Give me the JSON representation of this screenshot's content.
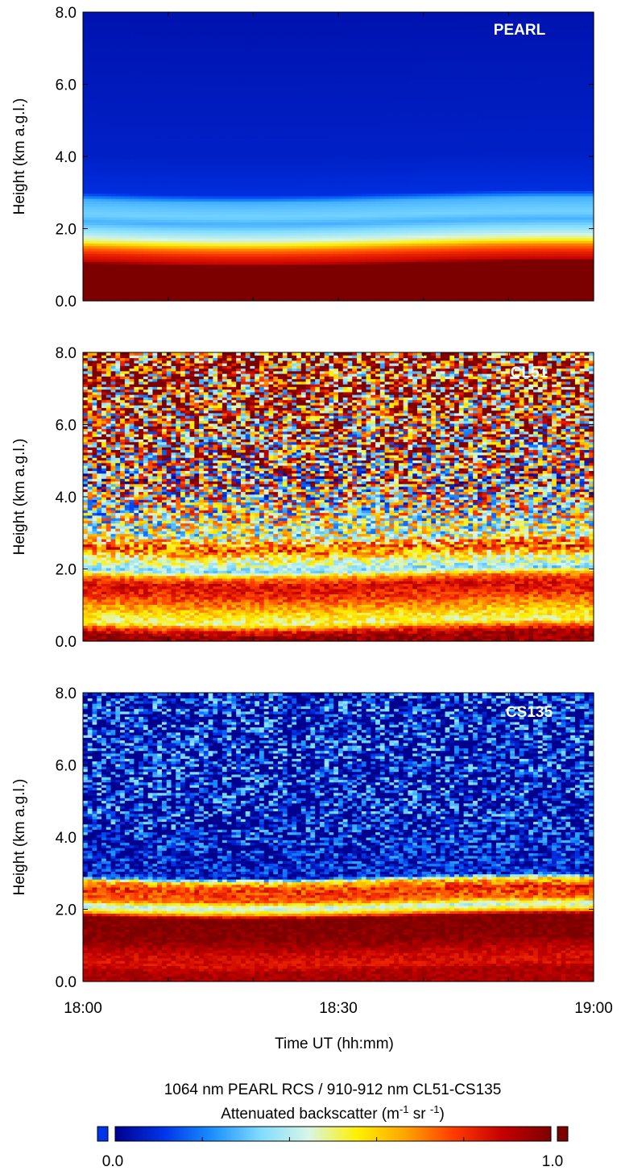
{
  "chart_data": [
    {
      "type": "heatmap",
      "instrument_label": "PEARL",
      "ylabel": "Height (km a.g.l.)",
      "ylim": [
        0.0,
        8.0
      ],
      "y_ticks": [
        0.0,
        2.0,
        4.0,
        6.0,
        8.0
      ],
      "y_tick_labels": [
        "0.0",
        "2.0",
        "4.0",
        "6.0",
        "8.0"
      ],
      "x_range": [
        "18:00",
        "19:00"
      ],
      "noise_level": 0.0,
      "profile": [
        {
          "h": 0.0,
          "v": 1.0
        },
        {
          "h": 1.05,
          "v": 1.0
        },
        {
          "h": 1.12,
          "v": 0.88
        },
        {
          "h": 1.3,
          "v": 0.82
        },
        {
          "h": 1.5,
          "v": 0.7
        },
        {
          "h": 1.65,
          "v": 0.52
        },
        {
          "h": 1.8,
          "v": 0.42
        },
        {
          "h": 2.0,
          "v": 0.34
        },
        {
          "h": 2.2,
          "v": 0.27
        },
        {
          "h": 2.4,
          "v": 0.32
        },
        {
          "h": 2.6,
          "v": 0.3
        },
        {
          "h": 2.8,
          "v": 0.27
        },
        {
          "h": 3.0,
          "v": 0.1
        },
        {
          "h": 4.0,
          "v": 0.07
        },
        {
          "h": 8.0,
          "v": 0.04
        }
      ]
    },
    {
      "type": "heatmap",
      "instrument_label": "CL51",
      "ylabel": "Height (km a.g.l.)",
      "ylim": [
        0.0,
        8.0
      ],
      "y_ticks": [
        0.0,
        2.0,
        4.0,
        6.0,
        8.0
      ],
      "y_tick_labels": [
        "0.0",
        "2.0",
        "4.0",
        "6.0",
        "8.0"
      ],
      "x_range": [
        "18:00",
        "19:00"
      ],
      "noise_level": 0.55,
      "profile": [
        {
          "h": 0.0,
          "v": 0.95
        },
        {
          "h": 0.2,
          "v": 0.95
        },
        {
          "h": 0.35,
          "v": 0.82
        },
        {
          "h": 0.55,
          "v": 0.5
        },
        {
          "h": 0.8,
          "v": 0.58
        },
        {
          "h": 1.0,
          "v": 0.68
        },
        {
          "h": 1.3,
          "v": 0.8
        },
        {
          "h": 1.6,
          "v": 0.86
        },
        {
          "h": 1.8,
          "v": 0.72
        },
        {
          "h": 2.0,
          "v": 0.35
        },
        {
          "h": 2.3,
          "v": 0.5
        },
        {
          "h": 2.6,
          "v": 0.75
        },
        {
          "h": 3.0,
          "v": 0.45
        },
        {
          "h": 4.0,
          "v": 0.5
        },
        {
          "h": 6.0,
          "v": 0.68
        },
        {
          "h": 8.0,
          "v": 0.8
        }
      ]
    },
    {
      "type": "heatmap",
      "instrument_label": "CS135",
      "ylabel": "Height (km a.g.l.)",
      "ylim": [
        0.0,
        8.0
      ],
      "y_ticks": [
        0.0,
        2.0,
        4.0,
        6.0,
        8.0
      ],
      "y_tick_labels": [
        "0.0",
        "2.0",
        "4.0",
        "6.0",
        "8.0"
      ],
      "x_range": [
        "18:00",
        "19:00"
      ],
      "noise_level": 0.3,
      "profile": [
        {
          "h": 0.0,
          "v": 0.92
        },
        {
          "h": 0.3,
          "v": 0.93
        },
        {
          "h": 0.5,
          "v": 0.85
        },
        {
          "h": 0.8,
          "v": 0.88
        },
        {
          "h": 1.2,
          "v": 0.98
        },
        {
          "h": 1.8,
          "v": 1.0
        },
        {
          "h": 1.95,
          "v": 0.6
        },
        {
          "h": 2.1,
          "v": 0.4
        },
        {
          "h": 2.3,
          "v": 0.75
        },
        {
          "h": 2.6,
          "v": 0.8
        },
        {
          "h": 2.8,
          "v": 0.6
        },
        {
          "h": 2.95,
          "v": 0.08
        },
        {
          "h": 4.0,
          "v": 0.06
        },
        {
          "h": 8.0,
          "v": 0.07
        }
      ]
    }
  ],
  "x_axis": {
    "xlabel": "Time UT (hh:mm)",
    "tick_labels": [
      "18:00",
      "18:30",
      "19:00"
    ]
  },
  "colorbar": {
    "title_line1": "1064 nm PEARL RCS / 910-912 nm CL51-CS135",
    "title_line2_prefix": "Attenuated backscatter (m",
    "title_line2_sup1": "-1",
    "title_line2_mid": " sr ",
    "title_line2_sup2": "-1",
    "title_line2_suffix": ")",
    "min_label": "0.0",
    "max_label": "1.0",
    "stops": [
      "#00008f",
      "#0034e8",
      "#1b8fff",
      "#7fdcff",
      "#d8f6e6",
      "#fff000",
      "#ffa300",
      "#ff3a00",
      "#c40000",
      "#7d0000"
    ]
  }
}
